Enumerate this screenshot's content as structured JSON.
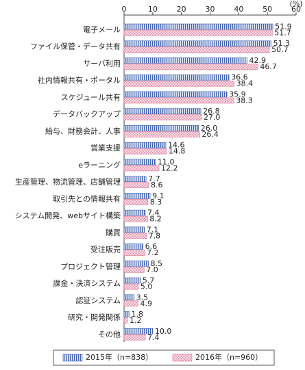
{
  "chart_data": {
    "type": "hbar",
    "unit_label": "(%)",
    "categories": [
      "電子メール",
      "ファイル保管・データ共有",
      "サーバ利用",
      "社内情報共有・ポータル",
      "スケジュール共有",
      "データバックアップ",
      "給与、財務会計、人事",
      "営業支援",
      "eラーニング",
      "生産管理、物流管理、店舗管理",
      "取引先との情報共有",
      "システム開発、webサイト構築",
      "購買",
      "受注販売",
      "プロジェクト管理",
      "課金・決済システム",
      "認証システム",
      "研究・開発関係",
      "その他"
    ],
    "series": [
      {
        "name": "2015年（n=838）",
        "color": "#3f63b0",
        "values": [
          51.9,
          51.3,
          42.9,
          36.6,
          35.9,
          26.8,
          26.0,
          14.6,
          11.0,
          7.7,
          9.1,
          7.4,
          7.1,
          6.6,
          8.5,
          5.7,
          3.5,
          1.8,
          10.0
        ],
        "value_labels": [
          "51.9",
          "51.3",
          "42.9",
          "36.6",
          "35.9",
          "26.8",
          "26.0",
          "14.6",
          "11.0",
          "7.7",
          "9.1",
          "7.4",
          "7.1",
          "6.6",
          "8.5",
          "5.7",
          "3.5",
          "1.8",
          "10.0"
        ]
      },
      {
        "name": "2016年（n=960）",
        "color": "#e0708f",
        "values": [
          51.7,
          50.7,
          46.7,
          38.4,
          38.3,
          27.0,
          26.4,
          14.8,
          12.2,
          8.6,
          8.3,
          8.2,
          7.8,
          7.2,
          7.0,
          5.0,
          4.9,
          1.2,
          7.4
        ],
        "value_labels": [
          "51.7",
          "50.7",
          "46.7",
          "38.4",
          "38.3",
          "27.0",
          "26.4",
          "14.8",
          "12.2",
          "8.6",
          "8.3",
          "8.2",
          "7.8",
          "7.2",
          "7.0",
          "5.0",
          "4.9",
          "1.2",
          "7.4"
        ]
      }
    ],
    "xlim": [
      0,
      60
    ],
    "xticks": [
      0,
      10,
      20,
      30,
      40,
      50,
      60
    ],
    "grid": false
  }
}
